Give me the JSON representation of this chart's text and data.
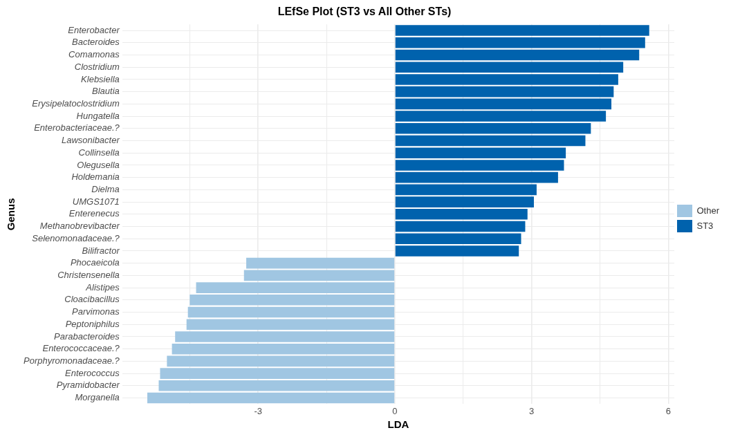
{
  "chart_data": {
    "type": "bar",
    "orientation": "horizontal",
    "title": "LEfSe Plot (ST3 vs All Other STs)",
    "xlabel": "LDA",
    "ylabel": "Genus",
    "categories": [
      "Enterobacter",
      "Bacteroides",
      "Comamonas",
      "Clostridium",
      "Klebsiella",
      "Blautia",
      "Erysipelatoclostridium",
      "Hungatella",
      "Enterobacteriaceae.?",
      "Lawsonibacter",
      "Collinsella",
      "Olegusella",
      "Holdemania",
      "Dielma",
      "UMGS1071",
      "Enterenecus",
      "Methanobrevibacter",
      "Selenomonadaceae.?",
      "Bilifractor",
      "Phocaeicola",
      "Christensenella",
      "Alistipes",
      "Cloacibacillus",
      "Parvimonas",
      "Peptoniphilus",
      "Parabacteroides",
      "Enterococcaceae.?",
      "Porphyromonadaceae.?",
      "Enterococcus",
      "Pyramidobacter",
      "Morganella"
    ],
    "series": [
      {
        "name": "Other",
        "color": "#a0c6e2",
        "values": [
          null,
          null,
          null,
          null,
          null,
          null,
          null,
          null,
          null,
          null,
          null,
          null,
          null,
          null,
          null,
          null,
          null,
          null,
          null,
          -3.26,
          -3.31,
          -4.36,
          -4.5,
          -4.54,
          -4.57,
          -4.82,
          -4.89,
          -5.0,
          -5.15,
          -5.18,
          -5.43
        ]
      },
      {
        "name": "ST3",
        "color": "#0062ad",
        "values": [
          5.58,
          5.49,
          5.36,
          5.01,
          4.9,
          4.8,
          4.75,
          4.63,
          4.3,
          4.18,
          3.75,
          3.71,
          3.58,
          3.11,
          3.05,
          2.91,
          2.86,
          2.77,
          2.72,
          null,
          null,
          null,
          null,
          null,
          null,
          null,
          null,
          null,
          null,
          null,
          null
        ]
      }
    ],
    "xlim": [
      -5.98,
      6.13
    ],
    "xticks": [
      {
        "value": -4.5,
        "label": null
      },
      -3,
      {
        "value": -1.5,
        "label": null
      },
      0,
      {
        "value": 1.5,
        "label": null
      },
      3,
      {
        "value": 4.5,
        "label": null
      },
      6
    ],
    "grid": true,
    "legend": "right"
  }
}
